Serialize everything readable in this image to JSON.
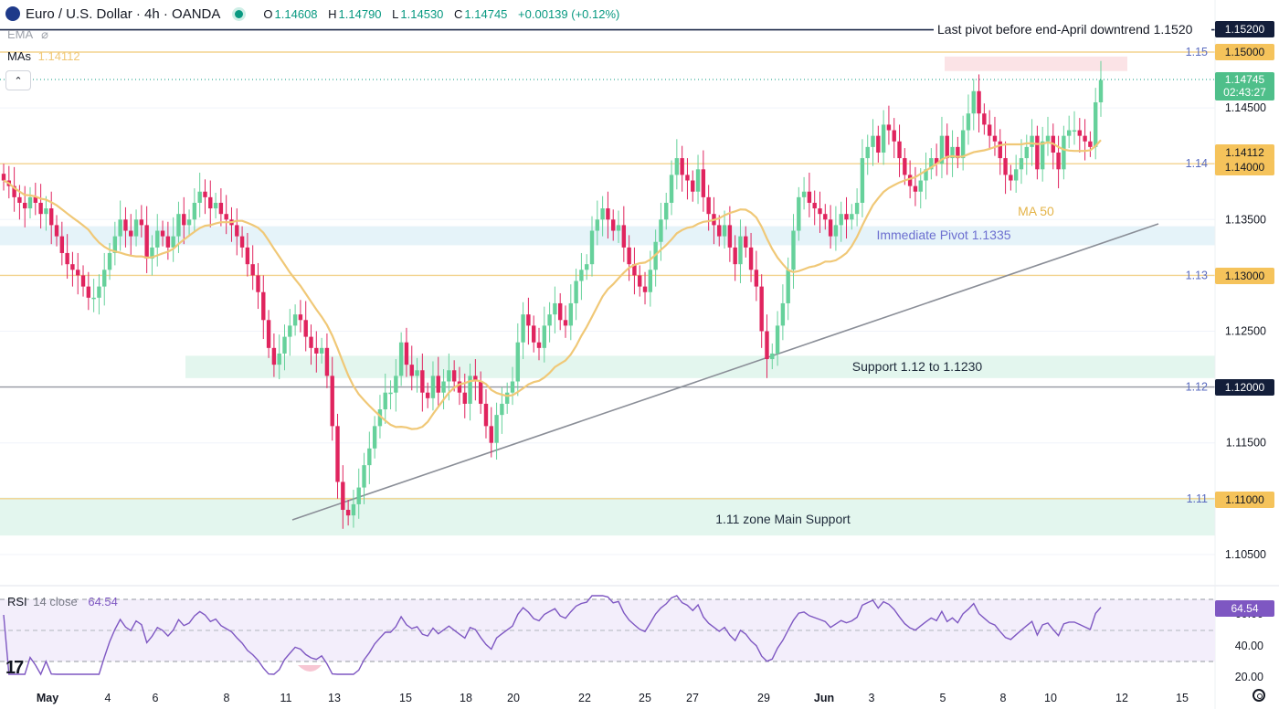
{
  "header": {
    "symbol": "Euro / U.S. Dollar · 4h · OANDA",
    "open_label": "O",
    "open": "1.14608",
    "high_label": "H",
    "high": "1.14790",
    "low_label": "L",
    "low": "1.14530",
    "close_label": "C",
    "close": "1.14745",
    "change": "+0.00139 (+0.12%)"
  },
  "indicators": {
    "ema_label": "EMA",
    "mas_label": "MAs",
    "mas_value": "1.14112",
    "rsi_label": "RSI",
    "rsi_params": "14 close",
    "rsi_value": "64.54"
  },
  "colors": {
    "up": "#089981",
    "up_body": "#66d19b",
    "down": "#e0245e",
    "ma": "#f0c877",
    "trendline": "#8a8e97",
    "resistance_line": "#1e2a4a",
    "zone_green": "#e3f6ee",
    "zone_blue": "#e5f3f9",
    "zone_red": "#fbe3e6",
    "rsi_line": "#7e57c2"
  },
  "chart_data": {
    "type": "candlestick",
    "title": "Euro / U.S. Dollar · 4h · OANDA",
    "ylim": [
      1.1035,
      1.1534
    ],
    "price_axis_ticks": [
      "1.15",
      "1.14500",
      "1.14",
      "1.13500",
      "1.13",
      "1.12500",
      "1.12",
      "1.11500",
      "1.11",
      "1.10500"
    ],
    "x_tick_labels": [
      "May",
      "4",
      "6",
      "8",
      "11",
      "13",
      "15",
      "18",
      "20",
      "22",
      "25",
      "27",
      "29",
      "Jun",
      "3",
      "5",
      "8",
      "10",
      "12",
      "15"
    ],
    "price_tags": [
      {
        "value": "1.15200",
        "kind": "dark"
      },
      {
        "value": "1.15000",
        "kind": "gold"
      },
      {
        "value": "1.14745",
        "kind": "green",
        "countdown": "02:43:27"
      },
      {
        "value": "1.14112",
        "kind": "gold"
      },
      {
        "value": "1.14000",
        "kind": "gold"
      },
      {
        "value": "1.13000",
        "kind": "gold"
      },
      {
        "value": "1.12000",
        "kind": "dark"
      },
      {
        "value": "1.11000",
        "kind": "gold"
      }
    ],
    "levels": [
      {
        "price": 1.152,
        "label": "Last pivot before end-April downtrend 1.1520"
      },
      {
        "price": 1.15
      },
      {
        "price": 1.14
      },
      {
        "price": 1.13
      },
      {
        "price": 1.12
      },
      {
        "price": 1.11
      }
    ],
    "zones": [
      {
        "label": "1.11 zone Main Support",
        "from": 1.1067,
        "to": 1.1101
      },
      {
        "label": "Support 1.12 to 1.1230",
        "from": 1.1208,
        "to": 1.1228
      },
      {
        "label": "Immediate Pivot 1.1335",
        "from": 1.1327,
        "to": 1.1344
      },
      {
        "label": "",
        "from": 1.1483,
        "to": 1.1496
      }
    ],
    "ma_label": "MA 50",
    "close_series": [
      1.1385,
      1.138,
      1.137,
      1.1365,
      1.136,
      1.137,
      1.1365,
      1.1355,
      1.136,
      1.1345,
      1.1335,
      1.132,
      1.131,
      1.1305,
      1.13,
      1.129,
      1.128,
      1.128,
      1.129,
      1.1305,
      1.132,
      1.1335,
      1.135,
      1.134,
      1.1335,
      1.135,
      1.1345,
      1.1315,
      1.1325,
      1.134,
      1.1335,
      1.1325,
      1.1335,
      1.1355,
      1.1345,
      1.135,
      1.1365,
      1.1375,
      1.137,
      1.136,
      1.1365,
      1.1355,
      1.135,
      1.1345,
      1.1335,
      1.1325,
      1.131,
      1.13,
      1.1285,
      1.126,
      1.1235,
      1.122,
      1.123,
      1.1245,
      1.1255,
      1.1265,
      1.126,
      1.1245,
      1.1235,
      1.123,
      1.1235,
      1.121,
      1.1165,
      1.1115,
      1.109,
      1.1085,
      1.1095,
      1.111,
      1.113,
      1.1145,
      1.1165,
      1.118,
      1.1195,
      1.1195,
      1.121,
      1.124,
      1.122,
      1.121,
      1.1215,
      1.1195,
      1.119,
      1.121,
      1.1195,
      1.1205,
      1.1215,
      1.1205,
      1.1195,
      1.1185,
      1.121,
      1.1205,
      1.1185,
      1.1165,
      1.115,
      1.1175,
      1.1185,
      1.1195,
      1.1205,
      1.124,
      1.1265,
      1.1255,
      1.124,
      1.1235,
      1.1255,
      1.1265,
      1.1275,
      1.126,
      1.1255,
      1.1275,
      1.1295,
      1.1305,
      1.131,
      1.134,
      1.135,
      1.136,
      1.135,
      1.134,
      1.1345,
      1.1325,
      1.131,
      1.13,
      1.129,
      1.1285,
      1.1305,
      1.133,
      1.135,
      1.1365,
      1.139,
      1.1405,
      1.139,
      1.1385,
      1.1375,
      1.1395,
      1.137,
      1.1355,
      1.1345,
      1.1335,
      1.1345,
      1.1325,
      1.131,
      1.1335,
      1.1325,
      1.1305,
      1.129,
      1.125,
      1.1225,
      1.123,
      1.1255,
      1.1275,
      1.1305,
      1.134,
      1.137,
      1.1375,
      1.1365,
      1.136,
      1.1355,
      1.135,
      1.1335,
      1.1345,
      1.1355,
      1.135,
      1.1355,
      1.1365,
      1.1405,
      1.1415,
      1.1425,
      1.141,
      1.1435,
      1.143,
      1.142,
      1.1405,
      1.139,
      1.138,
      1.1375,
      1.1385,
      1.1395,
      1.1405,
      1.14,
      1.1425,
      1.1405,
      1.1415,
      1.1405,
      1.143,
      1.1445,
      1.1465,
      1.1445,
      1.1435,
      1.1425,
      1.142,
      1.1405,
      1.139,
      1.1385,
      1.1395,
      1.1405,
      1.1415,
      1.1425,
      1.1395,
      1.142,
      1.1425,
      1.141,
      1.1395,
      1.1425,
      1.143,
      1.143,
      1.1425,
      1.142,
      1.1415,
      1.1455,
      1.1475
    ]
  }
}
